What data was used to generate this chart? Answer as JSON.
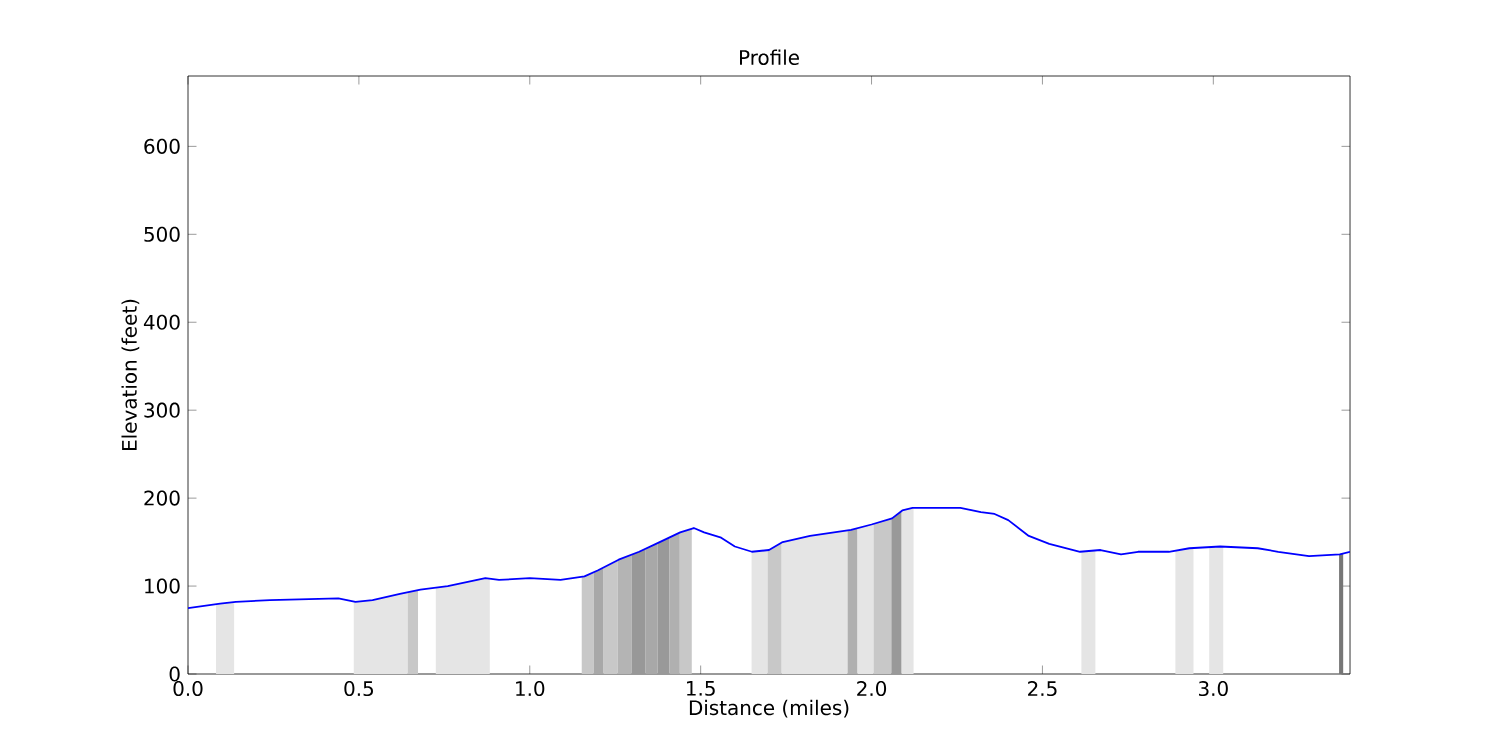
{
  "chart_data": {
    "type": "line",
    "title": "Profile",
    "xlabel": "Distance (miles)",
    "ylabel": "Elevation (feet)",
    "x": [
      0,
      0.094,
      0.14,
      0.24,
      0.44,
      0.49,
      0.54,
      0.62,
      0.68,
      0.76,
      0.87,
      0.91,
      1.0,
      1.09,
      1.16,
      1.2,
      1.26,
      1.32,
      1.38,
      1.44,
      1.48,
      1.51,
      1.56,
      1.6,
      1.65,
      1.7,
      1.74,
      1.82,
      1.94,
      2.0,
      2.06,
      2.09,
      2.12,
      2.26,
      2.32,
      2.36,
      2.4,
      2.46,
      2.52,
      2.61,
      2.67,
      2.73,
      2.78,
      2.87,
      2.93,
      3.02,
      3.13,
      3.19,
      3.28,
      3.37,
      3.4
    ],
    "series": [
      {
        "color": "#0000ff",
        "values": [
          75,
          80,
          82,
          84,
          86,
          82,
          84,
          91,
          96,
          100,
          109,
          107,
          109,
          107,
          111,
          118,
          130,
          139,
          150,
          161,
          166,
          161,
          155,
          145,
          139,
          141,
          150,
          157,
          164,
          170,
          177,
          186,
          189,
          189,
          184,
          182,
          175,
          157,
          148,
          139,
          141,
          136,
          139,
          139,
          143,
          145,
          143,
          139,
          134,
          136,
          139
        ]
      }
    ],
    "xlim": [
      0,
      3.4
    ],
    "ylim": [
      0,
      680
    ],
    "xticks": [
      {
        "value": 0,
        "label": "0.0"
      },
      {
        "value": 0.5,
        "label": "0.5"
      },
      {
        "value": 1,
        "label": "1.0"
      },
      {
        "value": 1.5,
        "label": "1.5"
      },
      {
        "value": 2,
        "label": "2.0"
      },
      {
        "value": 2.5,
        "label": "2.5"
      },
      {
        "value": 3,
        "label": "3.0"
      }
    ],
    "yticks": [
      0,
      100,
      200,
      300,
      400,
      500,
      600
    ],
    "grid": false,
    "marker": "none",
    "line_style": "solid",
    "bands": [
      {
        "axis": "x",
        "from": 0.082,
        "to": 0.135,
        "color": "#e5e5e5"
      },
      {
        "axis": "x",
        "from": 0.485,
        "to": 0.643,
        "color": "#e5e5e5"
      },
      {
        "axis": "x",
        "from": 0.643,
        "to": 0.673,
        "color": "#c8c8c8"
      },
      {
        "axis": "x",
        "from": 0.725,
        "to": 0.883,
        "color": "#e5e5e5"
      },
      {
        "axis": "x",
        "from": 1.152,
        "to": 1.187,
        "color": "#c8c8c8"
      },
      {
        "axis": "x",
        "from": 1.187,
        "to": 1.216,
        "color": "#a8a8a8"
      },
      {
        "axis": "x",
        "from": 1.216,
        "to": 1.257,
        "color": "#c8c8c8"
      },
      {
        "axis": "x",
        "from": 1.257,
        "to": 1.298,
        "color": "#b4b4b4"
      },
      {
        "axis": "x",
        "from": 1.298,
        "to": 1.339,
        "color": "#989898"
      },
      {
        "axis": "x",
        "from": 1.339,
        "to": 1.374,
        "color": "#a8a8a8"
      },
      {
        "axis": "x",
        "from": 1.374,
        "to": 1.409,
        "color": "#999999"
      },
      {
        "axis": "x",
        "from": 1.409,
        "to": 1.439,
        "color": "#b0b0b0"
      },
      {
        "axis": "x",
        "from": 1.439,
        "to": 1.474,
        "color": "#c8c8c8"
      },
      {
        "axis": "x",
        "from": 1.649,
        "to": 1.696,
        "color": "#e5e5e5"
      },
      {
        "axis": "x",
        "from": 1.696,
        "to": 1.737,
        "color": "#c8c8c8"
      },
      {
        "axis": "x",
        "from": 1.737,
        "to": 1.93,
        "color": "#e5e5e5"
      },
      {
        "axis": "x",
        "from": 1.93,
        "to": 1.959,
        "color": "#b0b0b0"
      },
      {
        "axis": "x",
        "from": 1.959,
        "to": 2.006,
        "color": "#e5e5e5"
      },
      {
        "axis": "x",
        "from": 2.006,
        "to": 2.058,
        "color": "#c8c8c8"
      },
      {
        "axis": "x",
        "from": 2.058,
        "to": 2.088,
        "color": "#999999"
      },
      {
        "axis": "x",
        "from": 2.088,
        "to": 2.123,
        "color": "#e5e5e5"
      },
      {
        "axis": "x",
        "from": 2.614,
        "to": 2.655,
        "color": "#e5e5e5"
      },
      {
        "axis": "x",
        "from": 2.889,
        "to": 2.942,
        "color": "#e5e5e5"
      },
      {
        "axis": "x",
        "from": 2.988,
        "to": 3.029,
        "color": "#e5e5e5"
      },
      {
        "axis": "x",
        "from": 3.368,
        "to": 3.38,
        "color": "#777777"
      }
    ]
  }
}
